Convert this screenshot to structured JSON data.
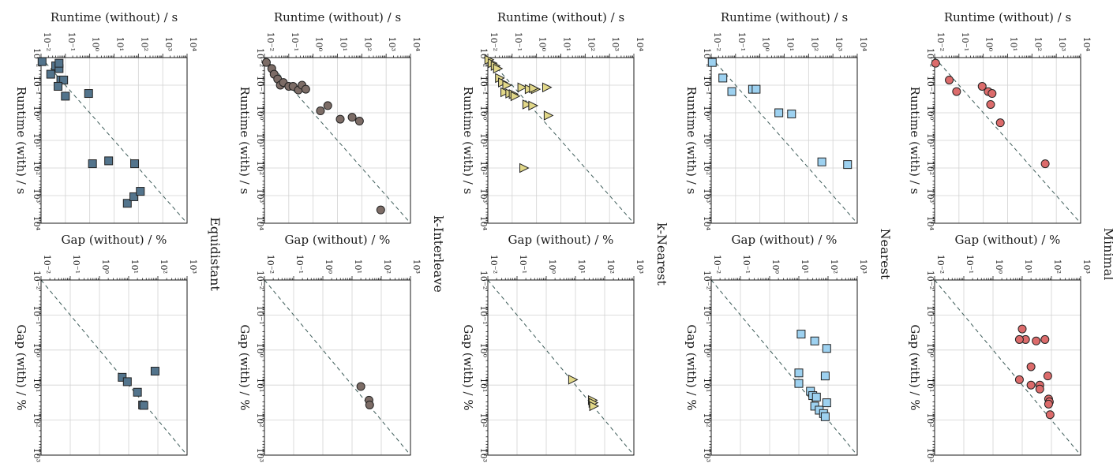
{
  "chart_data": [
    {
      "type": "scatter",
      "method": "Equidistant",
      "metric": "runtime",
      "xlabel": "Runtime (without) / s",
      "ylabel": "Runtime (with) / s",
      "xlim": [
        0.01,
        10000
      ],
      "ylim": [
        0.01,
        10000
      ],
      "xscale": "log",
      "yscale": "log",
      "grid": true,
      "series": [
        {
          "name": "Equidistant",
          "marker": "square",
          "color": "#53748c",
          "x": [
            0.011,
            0.025,
            0.04,
            0.055,
            0.065,
            0.085,
            0.05,
            0.055,
            0.1,
            0.9,
            1.3,
            6,
            70,
            35,
            65,
            120
          ],
          "y": [
            0.014,
            0.04,
            0.02,
            0.025,
            0.065,
            0.065,
            0.11,
            0.016,
            0.25,
            0.2,
            70,
            55,
            70,
            1900,
            1100,
            700
          ]
        }
      ]
    },
    {
      "type": "scatter",
      "method": "k-Interleave",
      "metric": "runtime",
      "xlabel": "Runtime (without) / s",
      "ylabel": "Runtime (with) / s",
      "xlim": [
        0.01,
        10000
      ],
      "ylim": [
        0.01,
        10000
      ],
      "xscale": "log",
      "yscale": "log",
      "grid": true,
      "series": [
        {
          "name": "k-Interleave",
          "marker": "circle",
          "color": "#7c6c66",
          "x": [
            0.012,
            0.02,
            0.025,
            0.035,
            0.045,
            0.06,
            0.1,
            0.15,
            0.25,
            0.35,
            0.5,
            2,
            4,
            13,
            40,
            80,
            600
          ],
          "y": [
            0.015,
            0.025,
            0.04,
            0.06,
            0.1,
            0.08,
            0.11,
            0.11,
            0.15,
            0.1,
            0.14,
            0.85,
            0.55,
            1.7,
            1.45,
            2,
            3300
          ]
        }
      ]
    },
    {
      "type": "scatter",
      "method": "k-Nearest",
      "metric": "runtime",
      "xlabel": "Runtime (without) / s",
      "ylabel": "Runtime (with) / s",
      "xlim": [
        0.01,
        10000
      ],
      "ylim": [
        0.01,
        10000
      ],
      "xscale": "log",
      "yscale": "log",
      "grid": true,
      "series": [
        {
          "name": "k-Nearest",
          "marker": "triangle",
          "color": "#e2d889",
          "x": [
            0.011,
            0.015,
            0.02,
            0.025,
            0.03,
            0.04,
            0.06,
            0.05,
            0.08,
            0.11,
            0.13,
            0.25,
            0.4,
            0.7,
            0.9,
            0.5,
            0.75,
            2.6,
            3.0,
            0.3
          ],
          "y": [
            0.012,
            0.016,
            0.02,
            0.025,
            0.055,
            0.08,
            0.1,
            0.18,
            0.2,
            0.21,
            0.25,
            0.12,
            0.5,
            0.55,
            0.14,
            0.14,
            0.13,
            0.12,
            1.25,
            100
          ]
        }
      ]
    },
    {
      "type": "scatter",
      "method": "Nearest",
      "metric": "runtime",
      "xlabel": "Runtime (without) / s",
      "ylabel": "Runtime (with) / s",
      "xlim": [
        0.01,
        10000
      ],
      "ylim": [
        0.01,
        10000
      ],
      "xscale": "log",
      "yscale": "log",
      "grid": true,
      "series": [
        {
          "name": "Nearest",
          "marker": "square",
          "color": "#9dd1f0",
          "x": [
            0.011,
            0.03,
            0.07,
            0.5,
            0.7,
            6,
            20,
            350,
            4000
          ],
          "y": [
            0.015,
            0.055,
            0.17,
            0.14,
            0.14,
            1,
            1.1,
            60,
            75
          ]
        }
      ]
    },
    {
      "type": "scatter",
      "method": "Minimal",
      "metric": "runtime",
      "xlabel": "Runtime (without) / s",
      "ylabel": "Runtime (with) / s",
      "xlim": [
        0.01,
        10000
      ],
      "ylim": [
        0.01,
        10000
      ],
      "xscale": "log",
      "yscale": "log",
      "grid": true,
      "series": [
        {
          "name": "Minimal",
          "marker": "circle",
          "color": "#dc6b6b",
          "x": [
            0.011,
            0.04,
            0.08,
            0.9,
            1.6,
            2.3,
            2,
            5,
            350
          ],
          "y": [
            0.016,
            0.065,
            0.17,
            0.11,
            0.17,
            0.2,
            0.5,
            2.3,
            70
          ]
        }
      ]
    },
    {
      "type": "scatter",
      "method": "Equidistant",
      "metric": "gap",
      "xlabel": "Gap (without) / %",
      "ylabel": "Gap (with) / %",
      "xlim": [
        0.01,
        1000
      ],
      "ylim": [
        0.01,
        1000
      ],
      "xscale": "log",
      "yscale": "log",
      "grid": true,
      "series": [
        {
          "name": "Equidistant",
          "marker": "square",
          "color": "#53748c",
          "x": [
            6,
            9,
            20,
            30,
            33,
            80
          ],
          "y": [
            6,
            8,
            16,
            37,
            38,
            4
          ]
        }
      ]
    },
    {
      "type": "scatter",
      "method": "k-Interleave",
      "metric": "gap",
      "xlabel": "Gap (without) / %",
      "ylabel": "Gap (with) / %",
      "xlim": [
        0.01,
        1000
      ],
      "ylim": [
        0.01,
        1000
      ],
      "xscale": "log",
      "yscale": "log",
      "grid": true,
      "series": [
        {
          "name": "k-Interleave",
          "marker": "circle",
          "color": "#7c6c66",
          "x": [
            20,
            38,
            40
          ],
          "y": [
            11,
            27,
            37
          ]
        }
      ]
    },
    {
      "type": "scatter",
      "method": "k-Nearest",
      "metric": "gap",
      "xlabel": "Gap (without) / %",
      "ylabel": "Gap (with) / %",
      "xlim": [
        0.01,
        1000
      ],
      "ylim": [
        0.01,
        1000
      ],
      "xscale": "log",
      "yscale": "log",
      "grid": true,
      "series": [
        {
          "name": "k-Nearest",
          "marker": "triangle",
          "color": "#e2d889",
          "x": [
            8,
            38,
            40,
            42
          ],
          "y": [
            7,
            27,
            32,
            40
          ]
        }
      ]
    },
    {
      "type": "scatter",
      "method": "Nearest",
      "metric": "gap",
      "xlabel": "Gap (without) / %",
      "ylabel": "Gap (with) / %",
      "xlim": [
        0.01,
        1000
      ],
      "ylim": [
        0.01,
        1000
      ],
      "xscale": "log",
      "yscale": "log",
      "grid": true,
      "series": [
        {
          "name": "Nearest",
          "marker": "square",
          "color": "#9dd1f0",
          "x": [
            12,
            35,
            90,
            10,
            80,
            10,
            25,
            30,
            40,
            35,
            50,
            70,
            80,
            90
          ],
          "y": [
            0.35,
            0.55,
            0.9,
            4.5,
            5.5,
            9,
            15,
            20,
            22,
            40,
            52,
            65,
            80,
            32
          ]
        }
      ]
    },
    {
      "type": "scatter",
      "method": "Minimal",
      "metric": "gap",
      "xlabel": "Gap (without) / %",
      "ylabel": "Gap (with) / %",
      "xlim": [
        0.01,
        1000
      ],
      "ylim": [
        0.01,
        1000
      ],
      "xscale": "log",
      "yscale": "log",
      "grid": true,
      "series": [
        {
          "name": "Minimal",
          "marker": "circle",
          "color": "#dc6b6b",
          "x": [
            10,
            13,
            8,
            30,
            60,
            20,
            8,
            20,
            40,
            40,
            75,
            80,
            85,
            80,
            90
          ],
          "y": [
            0.25,
            0.5,
            0.5,
            0.55,
            0.5,
            3,
            7,
            10,
            10,
            13,
            5.5,
            25,
            30,
            35,
            70
          ]
        }
      ]
    }
  ],
  "labels": {
    "runtime_x": "Runtime (without) / s",
    "runtime_y": "Runtime (with) / s",
    "gap_x": "Gap (without) / %",
    "gap_y": "Gap (with) / %",
    "methods": [
      "Equidistant",
      "k-Interleave",
      "k-Nearest",
      "Nearest",
      "Minimal"
    ]
  }
}
